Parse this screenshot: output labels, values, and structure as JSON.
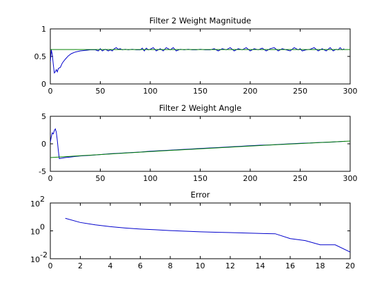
{
  "chart_data": [
    {
      "type": "line",
      "title": "Filter 2 Weight Magnitude",
      "xlabel": "",
      "ylabel": "",
      "xlim": [
        0,
        300
      ],
      "ylim": [
        0,
        1
      ],
      "xticks": [
        0,
        50,
        100,
        150,
        200,
        250,
        300
      ],
      "yticks": [
        0,
        0.5,
        1
      ],
      "grid": false,
      "series": [
        {
          "color": "#0000cc",
          "x": [
            0,
            1,
            2,
            3,
            4,
            5,
            6,
            7,
            8,
            10,
            12,
            15,
            18,
            21,
            25,
            30,
            35,
            40,
            45,
            48,
            50,
            52,
            55,
            58,
            60,
            62,
            64,
            66,
            68,
            70,
            72,
            75,
            78,
            82,
            86,
            90,
            92,
            94,
            96,
            98,
            100,
            103,
            106,
            110,
            113,
            116,
            120,
            123,
            126,
            130,
            134,
            138,
            142,
            146,
            150,
            155,
            160,
            164,
            168,
            172,
            176,
            180,
            184,
            188,
            192,
            196,
            200,
            204,
            208,
            212,
            216,
            220,
            224,
            228,
            232,
            236,
            240,
            244,
            248,
            250,
            252,
            256,
            260,
            264,
            268,
            272,
            276,
            280,
            283,
            286,
            288,
            290,
            292,
            294
          ],
          "y": [
            0.4,
            0.62,
            0.53,
            0.35,
            0.2,
            0.22,
            0.26,
            0.22,
            0.28,
            0.3,
            0.38,
            0.45,
            0.51,
            0.55,
            0.58,
            0.6,
            0.61,
            0.62,
            0.62,
            0.6,
            0.64,
            0.6,
            0.63,
            0.6,
            0.62,
            0.6,
            0.64,
            0.66,
            0.63,
            0.64,
            0.62,
            0.63,
            0.62,
            0.63,
            0.62,
            0.62,
            0.65,
            0.6,
            0.65,
            0.62,
            0.63,
            0.66,
            0.6,
            0.64,
            0.6,
            0.66,
            0.62,
            0.66,
            0.6,
            0.63,
            0.62,
            0.63,
            0.62,
            0.62,
            0.63,
            0.62,
            0.62,
            0.64,
            0.6,
            0.64,
            0.62,
            0.66,
            0.6,
            0.64,
            0.62,
            0.66,
            0.6,
            0.64,
            0.62,
            0.65,
            0.6,
            0.64,
            0.66,
            0.6,
            0.64,
            0.62,
            0.6,
            0.66,
            0.62,
            0.64,
            0.6,
            0.62,
            0.63,
            0.66,
            0.6,
            0.64,
            0.6,
            0.66,
            0.6,
            0.63,
            0.62,
            0.66,
            0.62,
            0.64
          ]
        },
        {
          "color": "#008000",
          "x": [
            0,
            300
          ],
          "y": [
            0.625,
            0.625
          ]
        }
      ]
    },
    {
      "type": "line",
      "title": "Filter 2 Weight Angle",
      "xlabel": "",
      "ylabel": "",
      "xlim": [
        0,
        300
      ],
      "ylim": [
        -5,
        5
      ],
      "xticks": [
        0,
        50,
        100,
        150,
        200,
        250,
        300
      ],
      "yticks": [
        -5,
        0,
        5
      ],
      "grid": false,
      "series": [
        {
          "color": "#0000cc",
          "x": [
            0,
            1,
            2,
            3,
            4,
            5,
            6,
            7,
            8,
            9,
            10,
            12,
            15,
            20,
            25,
            30,
            40,
            50,
            60,
            70,
            80,
            90,
            100,
            110,
            120,
            130,
            140,
            150,
            160,
            170,
            180,
            190,
            200,
            210,
            220,
            230,
            240,
            250,
            260,
            270,
            280,
            290,
            295
          ],
          "y": [
            0.3,
            1.3,
            2.0,
            1.8,
            2.4,
            2.7,
            2.1,
            0.6,
            -1.2,
            -2.7,
            -2.65,
            -2.6,
            -2.5,
            -2.4,
            -2.3,
            -2.2,
            -2.1,
            -1.95,
            -1.8,
            -1.7,
            -1.6,
            -1.5,
            -1.35,
            -1.25,
            -1.15,
            -1.05,
            -0.95,
            -0.85,
            -0.75,
            -0.65,
            -0.55,
            -0.45,
            -0.35,
            -0.25,
            -0.2,
            -0.1,
            0.0,
            0.1,
            0.15,
            0.25,
            0.3,
            0.4,
            0.45
          ]
        },
        {
          "color": "#008000",
          "x": [
            0,
            50,
            100,
            150,
            200,
            250,
            300
          ],
          "y": [
            -2.5,
            -1.95,
            -1.4,
            -0.9,
            -0.4,
            0.05,
            0.5
          ]
        }
      ]
    },
    {
      "type": "line",
      "title": "Error",
      "xlabel": "",
      "ylabel": "",
      "yscale": "log",
      "xlim": [
        0,
        20
      ],
      "ylim": [
        0.01,
        100
      ],
      "xticks": [
        0,
        2,
        4,
        6,
        8,
        10,
        12,
        14,
        16,
        18,
        20
      ],
      "yticks": [
        0.01,
        1,
        100
      ],
      "ytick_labels": [
        {
          "base": "10",
          "exp": "-2"
        },
        {
          "base": "10",
          "exp": "0"
        },
        {
          "base": "10",
          "exp": "2"
        }
      ],
      "grid": false,
      "series": [
        {
          "color": "#0000cc",
          "x": [
            1,
            2,
            3,
            4,
            5,
            6,
            7,
            8,
            9,
            10,
            11,
            12,
            13,
            14,
            15,
            16,
            17,
            18,
            19,
            20
          ],
          "y": [
            8,
            4,
            2.7,
            2,
            1.6,
            1.35,
            1.2,
            1.05,
            0.95,
            0.85,
            0.8,
            0.75,
            0.7,
            0.65,
            0.62,
            0.28,
            0.2,
            0.1,
            0.1,
            0.03
          ]
        }
      ]
    }
  ]
}
